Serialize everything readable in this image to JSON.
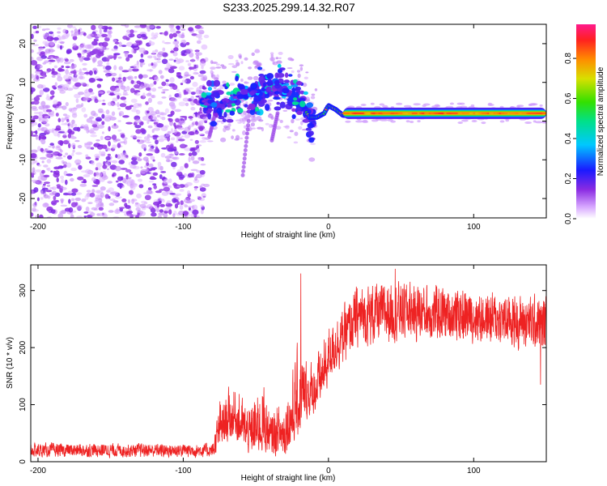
{
  "title": "S233.2025.299.14.32.R07",
  "chart_data": [
    {
      "type": "heatmap",
      "panel": "spectrogram",
      "xlabel": "Height of straight line (km)",
      "ylabel": "Frequency (Hz)",
      "xlim": [
        -205,
        150
      ],
      "ylim": [
        -25,
        25
      ],
      "xticks": [
        -200,
        -100,
        0,
        100
      ],
      "yticks": [
        -20,
        -10,
        0,
        10,
        20
      ],
      "xtick_labels": [
        "-200",
        "-100",
        "0",
        "100"
      ],
      "ytick_labels": [
        "-20",
        "-10",
        "0",
        "10",
        "20"
      ],
      "colorbar": {
        "label": "Normalized spectral amplitude",
        "range": [
          0,
          0.97
        ],
        "ticks": [
          0.0,
          0.2,
          0.4,
          0.6,
          0.8
        ],
        "tick_labels": [
          "0.0",
          "0.2",
          "0.4",
          "0.6",
          "0.8"
        ]
      },
      "regions": [
        {
          "name": "noise",
          "x_range": [
            -205,
            -87
          ],
          "freq_range": [
            -25,
            25
          ],
          "amplitude_range": [
            0.0,
            0.1
          ]
        },
        {
          "name": "onset",
          "x_range": [
            -87,
            -10
          ],
          "freq_range": [
            -15,
            12
          ],
          "amplitude_range": [
            0.1,
            0.45
          ]
        },
        {
          "name": "steady-line",
          "x_range": [
            10,
            150
          ],
          "freq_range": [
            1,
            3
          ],
          "amplitude_range": [
            0.6,
            0.95
          ]
        }
      ],
      "ridge": [
        {
          "x": -85,
          "f": 5
        },
        {
          "x": -75,
          "f": 4
        },
        {
          "x": -65,
          "f": 6
        },
        {
          "x": -55,
          "f": 7
        },
        {
          "x": -45,
          "f": 8
        },
        {
          "x": -35,
          "f": 9
        },
        {
          "x": -25,
          "f": 6
        },
        {
          "x": -18,
          "f": 4
        },
        {
          "x": -13,
          "f": 1
        },
        {
          "x": -8,
          "f": 1
        },
        {
          "x": -3,
          "f": 2
        },
        {
          "x": 0,
          "f": 4
        },
        {
          "x": 5,
          "f": 3
        },
        {
          "x": 10,
          "f": 1.5
        },
        {
          "x": 50,
          "f": 1.5
        },
        {
          "x": 100,
          "f": 1.5
        },
        {
          "x": 150,
          "f": 1.5
        }
      ]
    },
    {
      "type": "line",
      "panel": "snr",
      "xlabel": "Height of straight line (km)",
      "ylabel": "SNR (10 * v/v)",
      "xlim": [
        -205,
        150
      ],
      "ylim": [
        0,
        345
      ],
      "xticks": [
        -200,
        -100,
        0,
        100
      ],
      "yticks": [
        0,
        100,
        200,
        300
      ],
      "xtick_labels": [
        "-200",
        "-100",
        "0",
        "100"
      ],
      "ytick_labels": [
        "0",
        "100",
        "200",
        "300"
      ],
      "color": "#ee2222",
      "envelope": [
        {
          "x": -205,
          "low": 5,
          "high": 35
        },
        {
          "x": -80,
          "low": 5,
          "high": 35
        },
        {
          "x": -75,
          "low": 20,
          "high": 120
        },
        {
          "x": -65,
          "low": 40,
          "high": 150
        },
        {
          "x": -55,
          "low": 10,
          "high": 110
        },
        {
          "x": -45,
          "low": 15,
          "high": 160
        },
        {
          "x": -40,
          "low": 5,
          "high": 100
        },
        {
          "x": -30,
          "low": 10,
          "high": 130
        },
        {
          "x": -20,
          "low": 40,
          "high": 230
        },
        {
          "x": -15,
          "low": 70,
          "high": 200
        },
        {
          "x": -10,
          "low": 80,
          "high": 190
        },
        {
          "x": 0,
          "low": 130,
          "high": 250
        },
        {
          "x": 10,
          "low": 160,
          "high": 280
        },
        {
          "x": 20,
          "low": 190,
          "high": 320
        },
        {
          "x": 50,
          "low": 200,
          "high": 330
        },
        {
          "x": 100,
          "low": 200,
          "high": 310
        },
        {
          "x": 150,
          "low": 180,
          "high": 300
        }
      ],
      "spikes": [
        {
          "x": -19,
          "y": 330
        },
        {
          "x": 46,
          "y": 338
        },
        {
          "x": 146,
          "y": 135
        }
      ]
    }
  ]
}
